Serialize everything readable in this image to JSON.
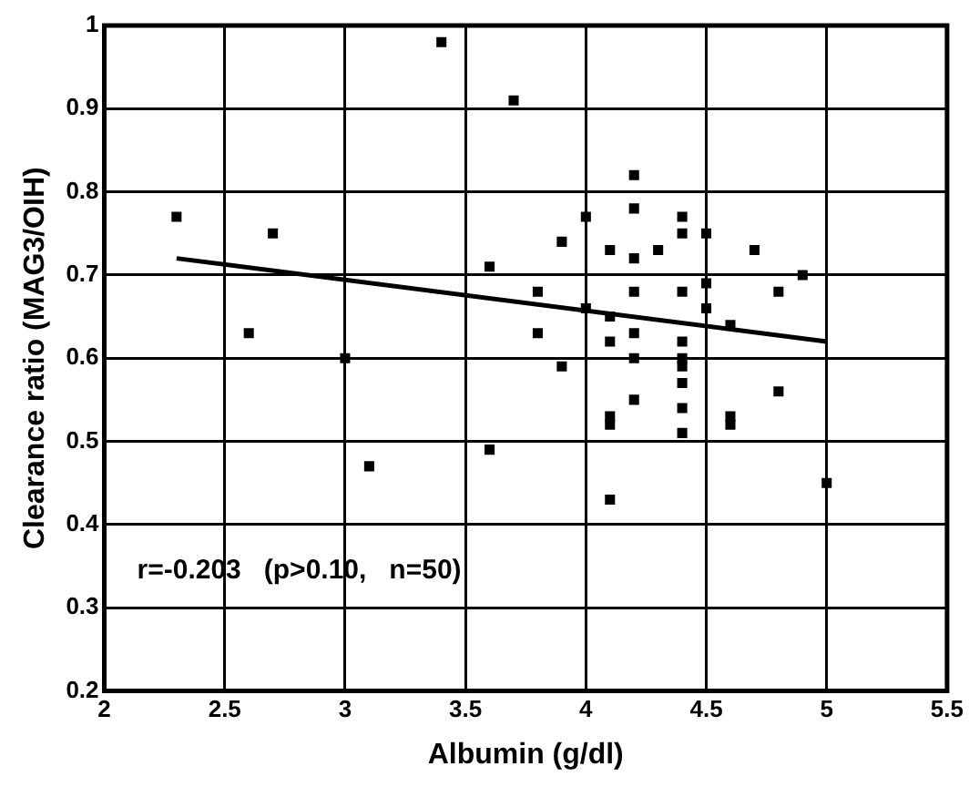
{
  "chart_data": {
    "type": "scatter",
    "xlabel": "Albumin (g/dl)",
    "ylabel": "Clearance ratio (MAG3/OIH)",
    "xlim": [
      2,
      5.5
    ],
    "xticks": [
      2,
      2.5,
      3,
      3.5,
      4,
      4.5,
      5,
      5.5
    ],
    "ylim": [
      0.2,
      1
    ],
    "yticks": [
      0.2,
      0.3,
      0.4,
      0.5,
      0.6,
      0.7,
      0.8,
      0.9,
      1
    ],
    "grid": true,
    "legend": false,
    "marker": "square",
    "annotations": [
      "r=-0.203   (p>0.10,   n=50)"
    ],
    "series": [
      {
        "color": "#000000",
        "x": [
          2.3,
          2.6,
          2.7,
          3.0,
          3.1,
          3.4,
          3.6,
          3.6,
          3.7,
          3.8,
          3.8,
          3.9,
          3.9,
          4.0,
          4.0,
          4.1,
          4.1,
          4.1,
          4.1,
          4.1,
          4.1,
          4.2,
          4.2,
          4.2,
          4.2,
          4.2,
          4.2,
          4.2,
          4.3,
          4.4,
          4.4,
          4.4,
          4.4,
          4.4,
          4.4,
          4.4,
          4.4,
          4.4,
          4.5,
          4.5,
          4.5,
          4.6,
          4.6,
          4.6,
          4.7,
          4.8,
          4.8,
          4.9,
          5.0
        ],
        "values": [
          0.77,
          0.63,
          0.75,
          0.6,
          0.47,
          0.98,
          0.71,
          0.49,
          0.91,
          0.68,
          0.63,
          0.74,
          0.59,
          0.77,
          0.66,
          0.73,
          0.65,
          0.62,
          0.53,
          0.52,
          0.43,
          0.82,
          0.78,
          0.72,
          0.68,
          0.63,
          0.6,
          0.55,
          0.73,
          0.77,
          0.75,
          0.68,
          0.62,
          0.6,
          0.59,
          0.57,
          0.54,
          0.51,
          0.75,
          0.69,
          0.66,
          0.64,
          0.53,
          0.52,
          0.73,
          0.68,
          0.56,
          0.7,
          0.45
        ]
      },
      {
        "type": "line",
        "color": "#000000",
        "marker": "none",
        "x": [
          2.3,
          5.0
        ],
        "values": [
          0.72,
          0.62
        ]
      }
    ]
  }
}
